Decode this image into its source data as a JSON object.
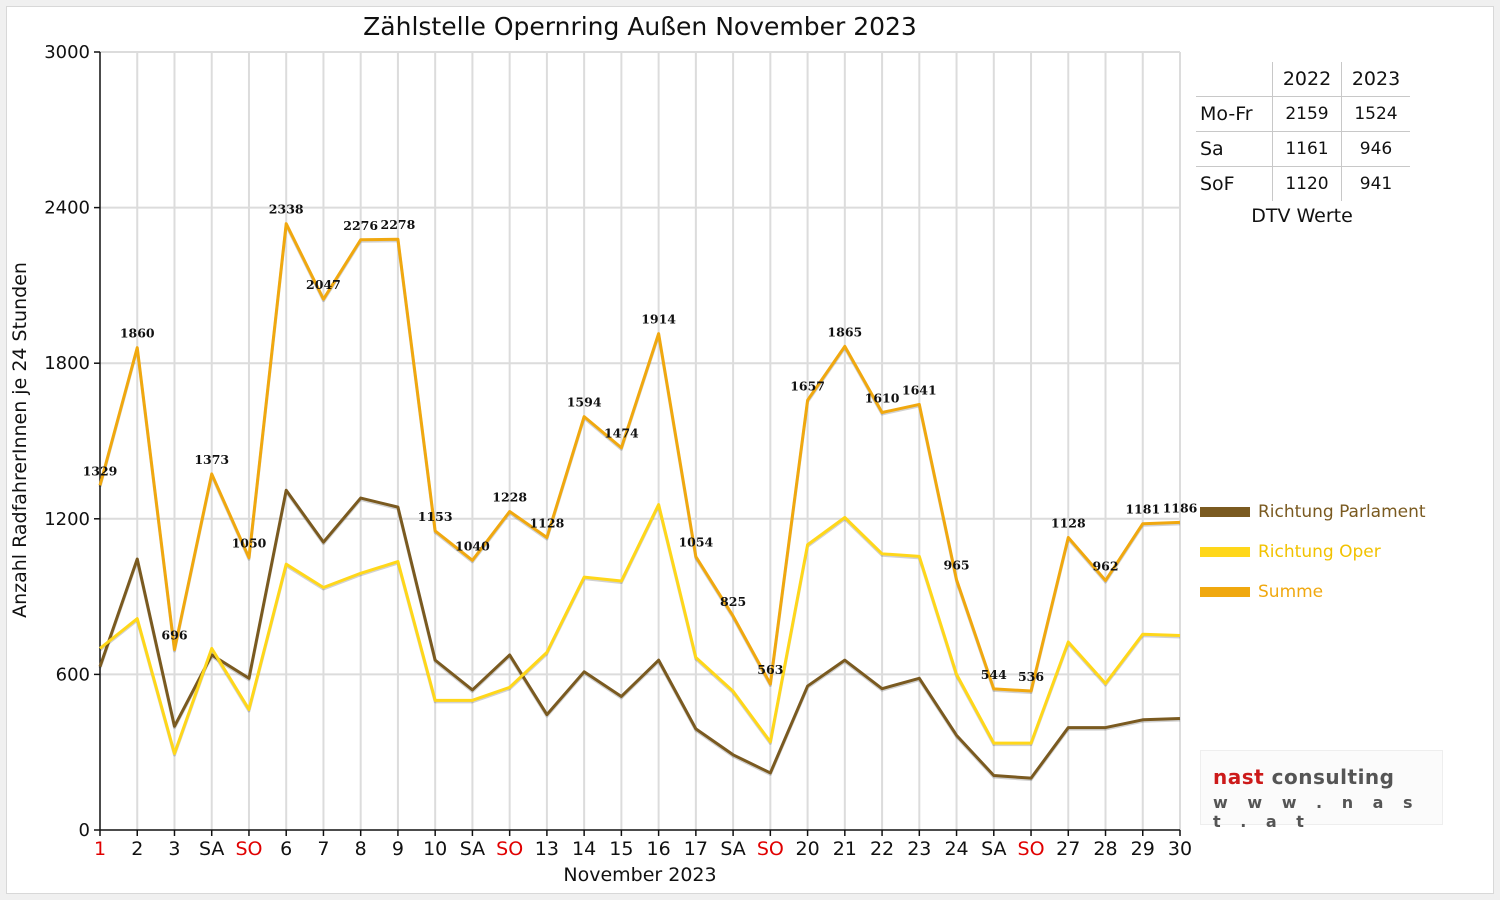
{
  "title": "Zählstelle Opernring Außen November 2023",
  "colors": {
    "parlament": "#7a5a20",
    "oper": "#ffd71a",
    "summe": "#f0a80f",
    "weekend_red": "#e00000",
    "grid": "#dddddd"
  },
  "chart_data": {
    "type": "line",
    "title": "Zählstelle Opernring Außen November 2023",
    "xlabel": "November 2023",
    "ylabel": "Anzahl RadfahrerInnen je 24 Stunden",
    "ylim": [
      0,
      3000
    ],
    "yticks": [
      0,
      600,
      1200,
      1800,
      2400,
      3000
    ],
    "grid": true,
    "legend_position": "right",
    "categories": [
      "1",
      "2",
      "3",
      "SA",
      "SO",
      "6",
      "7",
      "8",
      "9",
      "10",
      "SA",
      "SO",
      "13",
      "14",
      "15",
      "16",
      "17",
      "SA",
      "SO",
      "20",
      "21",
      "22",
      "23",
      "24",
      "SA",
      "SO",
      "27",
      "28",
      "29",
      "30"
    ],
    "red_categories": [
      0,
      4,
      11,
      18,
      25
    ],
    "series": [
      {
        "name": "Richtung Parlament",
        "color": "#7a5a20",
        "values": [
          630,
          1045,
          400,
          675,
          585,
          1310,
          1110,
          1280,
          1245,
          655,
          540,
          675,
          445,
          610,
          515,
          655,
          390,
          290,
          220,
          555,
          655,
          545,
          585,
          365,
          210,
          200,
          395,
          395,
          425,
          430
        ]
      },
      {
        "name": "Richtung Oper",
        "color": "#ffd71a",
        "values": [
          700,
          815,
          295,
          700,
          465,
          1025,
          935,
          990,
          1035,
          500,
          500,
          550,
          685,
          975,
          960,
          1255,
          665,
          535,
          340,
          1100,
          1205,
          1065,
          1055,
          600,
          335,
          335,
          725,
          565,
          755,
          750
        ]
      },
      {
        "name": "Summe",
        "color": "#f0a80f",
        "values": [
          1329,
          1860,
          696,
          1373,
          1050,
          2338,
          2047,
          2276,
          2278,
          1153,
          1040,
          1228,
          1128,
          1594,
          1474,
          1914,
          1054,
          825,
          563,
          1657,
          1865,
          1610,
          1641,
          965,
          544,
          536,
          1128,
          962,
          1181,
          1186
        ],
        "labels": [
          "1329",
          "1860",
          "696",
          "1373",
          "1050",
          "2338",
          "2047",
          "2276",
          "2278",
          "1153",
          "1040",
          "1228",
          "1128",
          "1594",
          "1474",
          "1914",
          "1054",
          "825",
          "563",
          "1657",
          "1865",
          "1610",
          "1641",
          "965",
          "544",
          "536",
          "1128",
          "962",
          "1181",
          "1186"
        ]
      }
    ]
  },
  "dtv_table": {
    "headers": [
      "",
      "2022",
      "2023"
    ],
    "rows": [
      {
        "label": "Mo-Fr",
        "v2022": "2159",
        "v2023": "1524"
      },
      {
        "label": "Sa",
        "v2022": "1161",
        "v2023": "946"
      },
      {
        "label": "SoF",
        "v2022": "1120",
        "v2023": "941"
      }
    ],
    "caption": "DTV Werte"
  },
  "legend": {
    "items": [
      {
        "label": "Richtung Parlament",
        "color": "#7a5a20"
      },
      {
        "label": "Richtung Oper",
        "color": "#ffd71a"
      },
      {
        "label": "Summe",
        "color": "#f0a80f"
      }
    ]
  },
  "logo": {
    "word1": "nast",
    "word2": "consulting",
    "url": "w w w . n a s t . a t"
  }
}
